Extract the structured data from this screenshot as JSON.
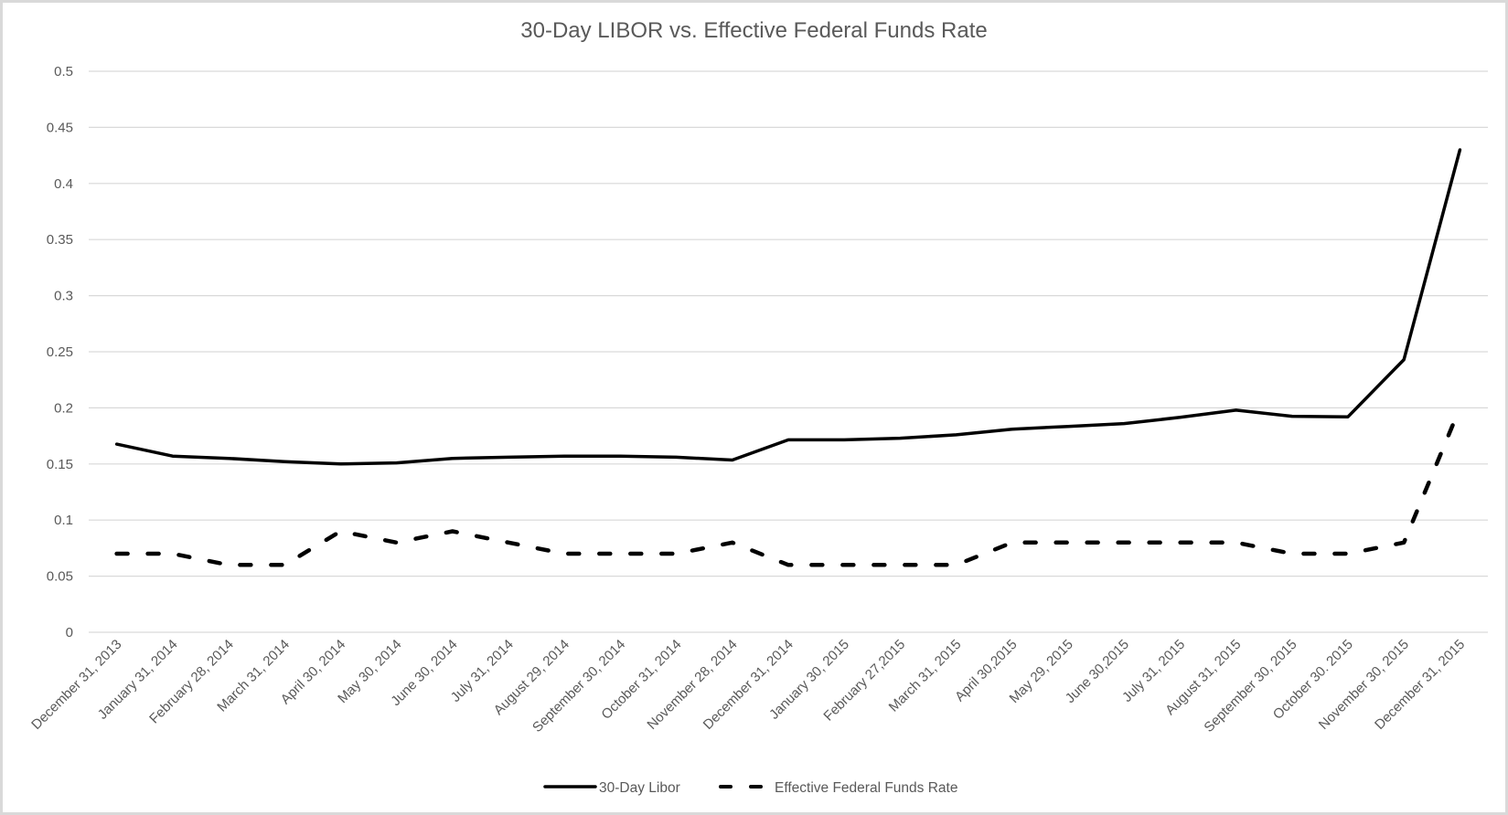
{
  "chart_data": {
    "type": "line",
    "title": "30-Day LIBOR vs. Effective Federal Funds Rate",
    "xlabel": "",
    "ylabel": "",
    "ylim": [
      0,
      0.5
    ],
    "yticks": [
      0,
      0.05,
      0.1,
      0.15,
      0.2,
      0.25,
      0.3,
      0.35,
      0.4,
      0.45,
      0.5
    ],
    "ytick_labels": [
      "0",
      "0.05",
      "0.1",
      "0.15",
      "0.2",
      "0.25",
      "0.3",
      "0.35",
      "0.4",
      "0.45",
      "0.5"
    ],
    "grid": true,
    "legend_position": "bottom",
    "categories": [
      "December 31, 2013",
      "January 31, 2014",
      "February 28, 2014",
      "March 31, 2014",
      "April 30, 2014",
      "May 30, 2014",
      "June 30, 2014",
      "July 31, 2014",
      "August 29, 2014",
      "September 30, 2014",
      "October 31, 2014",
      "November 28, 2014",
      "December 31, 2014",
      "January 30, 2015",
      "February 27,2015",
      "March 31, 2015",
      "April 30,2015",
      "May 29, 2015",
      "June 30,2015",
      "July 31, 2015",
      "August 31, 2015",
      "September 30, 2015",
      "October 30. 2015",
      "November 30, 2015",
      "December 31, 2015"
    ],
    "series": [
      {
        "name": "30-Day Libor",
        "style": "solid",
        "color": "#000000",
        "values": [
          0.1677,
          0.157,
          0.155,
          0.152,
          0.15,
          0.151,
          0.155,
          0.156,
          0.157,
          0.157,
          0.156,
          0.1535,
          0.1715,
          0.1715,
          0.173,
          0.176,
          0.181,
          0.1835,
          0.186,
          0.1915,
          0.198,
          0.1925,
          0.192,
          0.243,
          0.43
        ]
      },
      {
        "name": "Effective Federal Funds Rate",
        "style": "dashed",
        "color": "#000000",
        "values": [
          0.07,
          0.07,
          0.06,
          0.06,
          0.09,
          0.08,
          0.09,
          0.08,
          0.07,
          0.07,
          0.07,
          0.08,
          0.06,
          0.06,
          0.06,
          0.06,
          0.08,
          0.08,
          0.08,
          0.08,
          0.08,
          0.07,
          0.07,
          0.08,
          0.2
        ]
      }
    ]
  },
  "colors": {
    "gridline": "#d9d9d9",
    "text": "#595959",
    "border": "#d9d9d9",
    "line": "#000000"
  }
}
